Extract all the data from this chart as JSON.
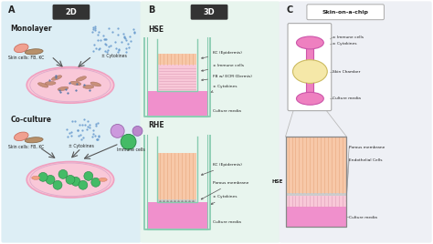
{
  "bg_color_A": "#ddeef5",
  "bg_color_B": "#e8f5ee",
  "bg_color_C": "#eef0f5",
  "panel_A_label": "A",
  "panel_B_label": "B",
  "panel_C_label": "C",
  "label_2D": "2D",
  "label_3D": "3D",
  "label_skin_chip": "Skin-on-a-chip",
  "monolayer_title": "Monolayer",
  "coculture_title": "Co-culture",
  "hse_title": "HSE",
  "rhe_title": "RHE",
  "pink_light": "#f9c8d8",
  "pink_medium": "#f0a0c0",
  "pink_mag": "#f090cc",
  "pink_bright": "#ee80c0",
  "peach": "#f7c8a8",
  "peach_line": "#e8a880",
  "teal_border": "#88ccb0",
  "salmon": "#f0a090",
  "lavender": "#cc99dd",
  "green_cell": "#44bb66",
  "text_dark": "#222222",
  "yellow_cream": "#f5e8a8",
  "dermis_fill": "#f8c8d8",
  "dermis_line": "#e0a0b8",
  "gray_mem": "#cccccc",
  "chip_border": "#aaaaaa",
  "chip_bg": "#f8f0f8",
  "arrow_color": "#555555",
  "line_color": "#888888"
}
